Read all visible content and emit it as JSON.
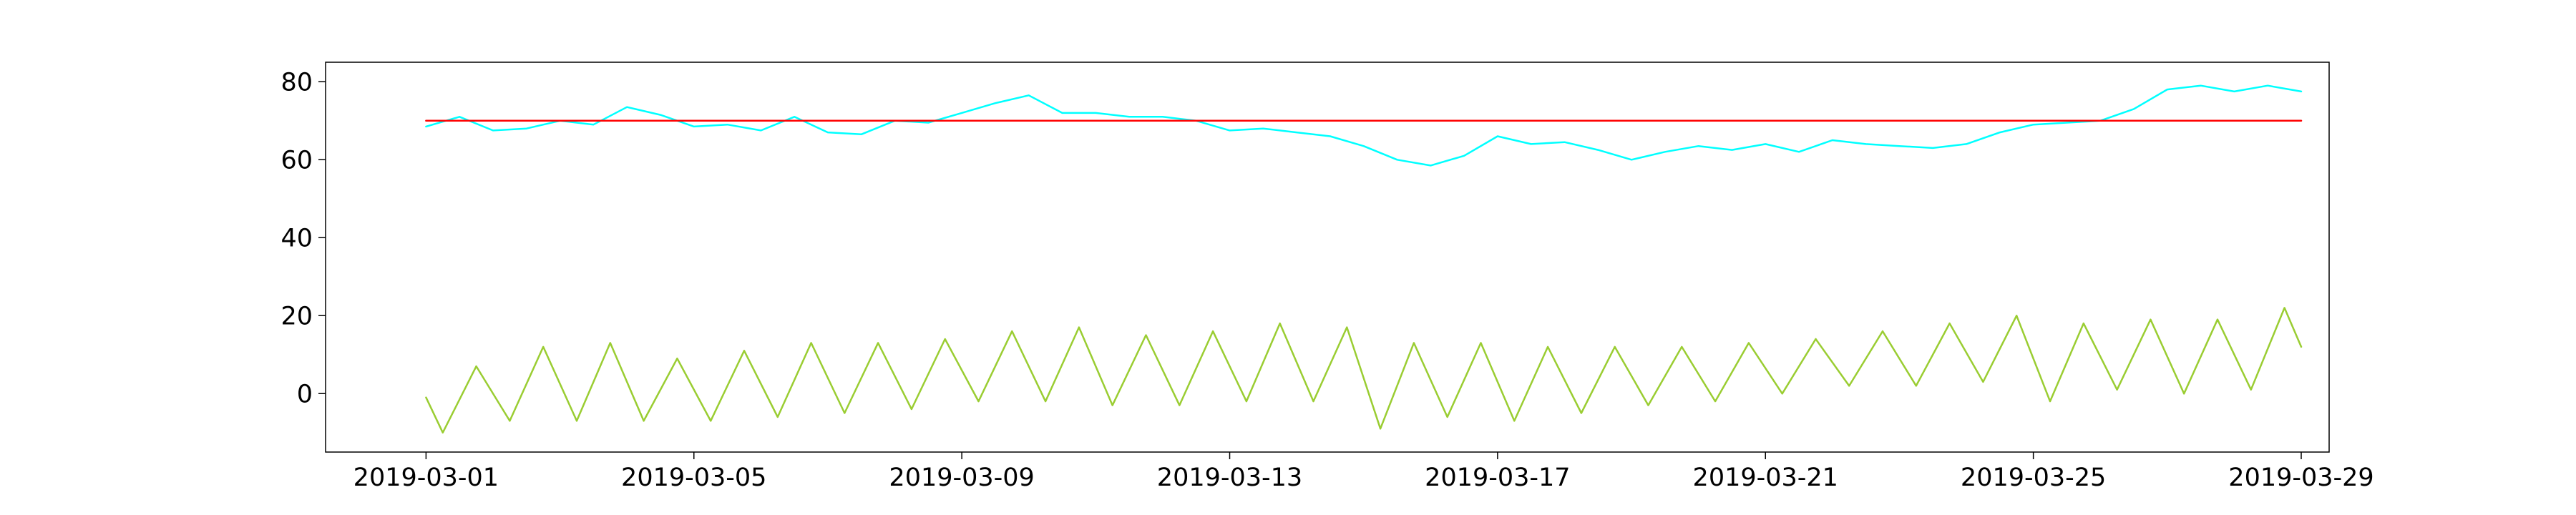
{
  "chart_data": {
    "type": "line",
    "title": "",
    "xlabel": "",
    "ylabel": "",
    "x_range": [
      "2019-02-27T12:00",
      "2019-03-29T10:00"
    ],
    "y_range": [
      -15,
      85
    ],
    "x_ticks": [
      "2019-03-01",
      "2019-03-05",
      "2019-03-09",
      "2019-03-13",
      "2019-03-17",
      "2019-03-21",
      "2019-03-25",
      "2019-03-29"
    ],
    "y_ticks": [
      0,
      20,
      40,
      60,
      80
    ],
    "grid": false,
    "legend": "none",
    "series": [
      {
        "color": "#00ffff",
        "line_width": 2.5,
        "x": [
          "2019-03-01",
          "2019-03-01T12:00",
          "2019-03-02",
          "2019-03-02T12:00",
          "2019-03-03",
          "2019-03-03T12:00",
          "2019-03-04",
          "2019-03-04T12:00",
          "2019-03-05",
          "2019-03-05T12:00",
          "2019-03-06",
          "2019-03-06T12:00",
          "2019-03-07",
          "2019-03-07T12:00",
          "2019-03-08",
          "2019-03-08T12:00",
          "2019-03-09",
          "2019-03-09T12:00",
          "2019-03-10",
          "2019-03-10T12:00",
          "2019-03-11",
          "2019-03-11T12:00",
          "2019-03-12",
          "2019-03-12T12:00",
          "2019-03-13",
          "2019-03-13T12:00",
          "2019-03-14",
          "2019-03-14T12:00",
          "2019-03-15",
          "2019-03-15T12:00",
          "2019-03-16",
          "2019-03-16T12:00",
          "2019-03-17",
          "2019-03-17T12:00",
          "2019-03-18",
          "2019-03-18T12:00",
          "2019-03-19",
          "2019-03-19T12:00",
          "2019-03-20",
          "2019-03-20T12:00",
          "2019-03-21",
          "2019-03-21T12:00",
          "2019-03-22",
          "2019-03-22T12:00",
          "2019-03-23",
          "2019-03-23T12:00",
          "2019-03-24",
          "2019-03-24T12:00",
          "2019-03-25",
          "2019-03-25T12:00",
          "2019-03-26",
          "2019-03-26T12:00",
          "2019-03-27",
          "2019-03-27T12:00",
          "2019-03-28",
          "2019-03-28T12:00",
          "2019-03-29"
        ],
        "y": [
          68.5,
          71,
          67.5,
          68,
          70,
          69,
          73.5,
          71.5,
          68.5,
          69,
          67.5,
          71,
          67,
          66.5,
          70,
          69.5,
          72,
          74.5,
          76.5,
          72,
          72,
          71,
          71,
          70,
          67.5,
          68,
          67,
          66,
          63.5,
          60,
          58.5,
          61,
          66,
          64,
          64.5,
          62.5,
          60,
          62,
          63.5,
          62.5,
          64,
          62,
          65,
          64,
          63.5,
          63,
          64,
          67,
          69,
          69.5,
          70,
          73,
          78,
          79,
          77.5,
          79,
          77.5
        ]
      },
      {
        "color": "#ff0000",
        "line_width": 2.5,
        "x": [
          "2019-03-01",
          "2019-03-29"
        ],
        "y": [
          70,
          70
        ]
      },
      {
        "color": "#9acd32",
        "line_width": 2.5,
        "x": [
          "2019-03-01",
          "2019-03-01T06:00",
          "2019-03-01T18:00",
          "2019-03-02T06:00",
          "2019-03-02T18:00",
          "2019-03-03T06:00",
          "2019-03-03T18:00",
          "2019-03-04T06:00",
          "2019-03-04T18:00",
          "2019-03-05T06:00",
          "2019-03-05T18:00",
          "2019-03-06T06:00",
          "2019-03-06T18:00",
          "2019-03-07T06:00",
          "2019-03-07T18:00",
          "2019-03-08T06:00",
          "2019-03-08T18:00",
          "2019-03-09T06:00",
          "2019-03-09T18:00",
          "2019-03-10T06:00",
          "2019-03-10T18:00",
          "2019-03-11T06:00",
          "2019-03-11T18:00",
          "2019-03-12T06:00",
          "2019-03-12T18:00",
          "2019-03-13T06:00",
          "2019-03-13T18:00",
          "2019-03-14T06:00",
          "2019-03-14T18:00",
          "2019-03-15T06:00",
          "2019-03-15T18:00",
          "2019-03-16T06:00",
          "2019-03-16T18:00",
          "2019-03-17T06:00",
          "2019-03-17T18:00",
          "2019-03-18T06:00",
          "2019-03-18T18:00",
          "2019-03-19T06:00",
          "2019-03-19T18:00",
          "2019-03-20T06:00",
          "2019-03-20T18:00",
          "2019-03-21T06:00",
          "2019-03-21T18:00",
          "2019-03-22T06:00",
          "2019-03-22T18:00",
          "2019-03-23T06:00",
          "2019-03-23T18:00",
          "2019-03-24T06:00",
          "2019-03-24T18:00",
          "2019-03-25T06:00",
          "2019-03-25T18:00",
          "2019-03-26T06:00",
          "2019-03-26T18:00",
          "2019-03-27T06:00",
          "2019-03-27T18:00",
          "2019-03-28T06:00",
          "2019-03-28T18:00",
          "2019-03-29"
        ],
        "y": [
          -1,
          -10,
          7,
          -7,
          12,
          -7,
          13,
          -7,
          9,
          -7,
          11,
          -6,
          13,
          -5,
          13,
          -4,
          14,
          -2,
          16,
          -2,
          17,
          -3,
          15,
          -3,
          16,
          -2,
          18,
          -2,
          17,
          -9,
          13,
          -6,
          13,
          -7,
          12,
          -5,
          12,
          -3,
          12,
          -2,
          13,
          0,
          14,
          2,
          16,
          2,
          18,
          3,
          20,
          -2,
          18,
          1,
          19,
          0,
          19,
          1,
          22,
          12
        ]
      }
    ]
  }
}
